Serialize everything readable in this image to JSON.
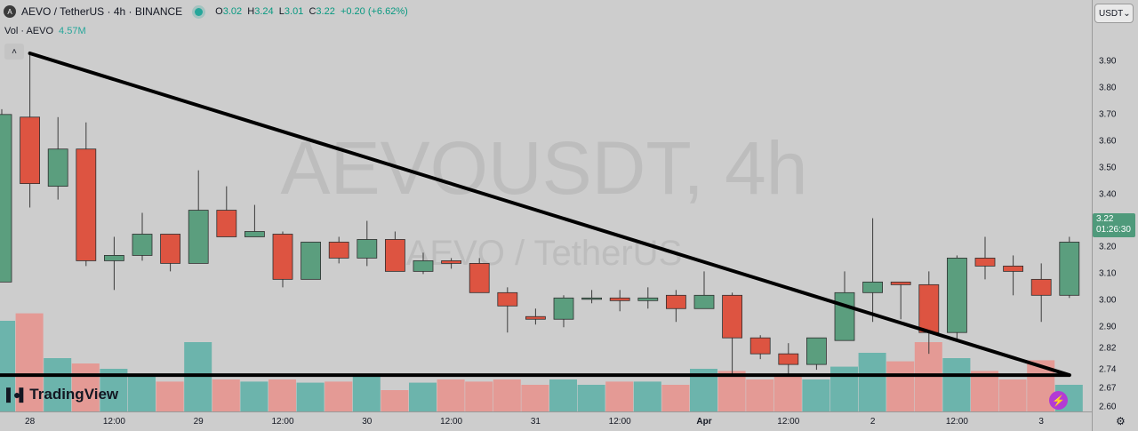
{
  "header": {
    "logo_letter": "A",
    "title": "AEVO / TetherUS · 4h · BINANCE",
    "open_label": "O",
    "open": "3.02",
    "high_label": "H",
    "high": "3.24",
    "low_label": "L",
    "low": "3.01",
    "close_label": "C",
    "close": "3.22",
    "change": "+0.20 (+6.62%)"
  },
  "volume": {
    "label": "Vol · AEVO",
    "value": "4.57M"
  },
  "currency_select": {
    "value": "USDT"
  },
  "current_price": {
    "price": "3.22",
    "countdown": "01:26:30"
  },
  "watermark": {
    "ticker": "AEVOUSDT, 4h",
    "name": "AEVO / TetherUS"
  },
  "branding": {
    "name": "TradingView"
  },
  "price_axis": {
    "labels": [
      "3.90",
      "3.80",
      "3.70",
      "3.60",
      "3.50",
      "3.40",
      "3.30",
      "3.20",
      "3.10",
      "3.00",
      "2.90",
      "2.82",
      "2.74",
      "2.67",
      "2.60"
    ]
  },
  "time_axis": {
    "labels": [
      "28",
      "12:00",
      "29",
      "12:00",
      "30",
      "12:00",
      "31",
      "12:00",
      "Apr",
      "12:00",
      "2",
      "12:00",
      "3"
    ]
  },
  "colors": {
    "up": "#5b9e7e",
    "down": "#dd5441",
    "up_vol": "#6cb4ac",
    "down_vol": "#e49a95",
    "background": "#cdcdcd",
    "trendline": "#000000"
  },
  "chart_data": {
    "type": "candlestick",
    "symbol": "AEVO / TetherUS",
    "interval": "4h",
    "ylim": [
      2.6,
      3.95
    ],
    "candles": [
      {
        "o": 3.07,
        "h": 3.72,
        "l": 3.07,
        "c": 3.7
      },
      {
        "o": 3.69,
        "h": 3.93,
        "l": 3.35,
        "c": 3.44
      },
      {
        "o": 3.43,
        "h": 3.69,
        "l": 3.38,
        "c": 3.57
      },
      {
        "o": 3.57,
        "h": 3.67,
        "l": 3.13,
        "c": 3.15
      },
      {
        "o": 3.15,
        "h": 3.24,
        "l": 3.04,
        "c": 3.17
      },
      {
        "o": 3.17,
        "h": 3.33,
        "l": 3.15,
        "c": 3.25
      },
      {
        "o": 3.25,
        "h": 3.25,
        "l": 3.11,
        "c": 3.14
      },
      {
        "o": 3.14,
        "h": 3.49,
        "l": 3.14,
        "c": 3.34
      },
      {
        "o": 3.34,
        "h": 3.43,
        "l": 3.24,
        "c": 3.24
      },
      {
        "o": 3.24,
        "h": 3.36,
        "l": 3.24,
        "c": 3.26
      },
      {
        "o": 3.25,
        "h": 3.26,
        "l": 3.05,
        "c": 3.08
      },
      {
        "o": 3.08,
        "h": 3.22,
        "l": 3.08,
        "c": 3.22
      },
      {
        "o": 3.22,
        "h": 3.24,
        "l": 3.14,
        "c": 3.16
      },
      {
        "o": 3.16,
        "h": 3.3,
        "l": 3.13,
        "c": 3.23
      },
      {
        "o": 3.23,
        "h": 3.26,
        "l": 3.11,
        "c": 3.11
      },
      {
        "o": 3.11,
        "h": 3.18,
        "l": 3.1,
        "c": 3.15
      },
      {
        "o": 3.15,
        "h": 3.16,
        "l": 3.12,
        "c": 3.14
      },
      {
        "o": 3.14,
        "h": 3.16,
        "l": 3.03,
        "c": 3.03
      },
      {
        "o": 3.03,
        "h": 3.05,
        "l": 2.88,
        "c": 2.98
      },
      {
        "o": 2.94,
        "h": 2.97,
        "l": 2.91,
        "c": 2.93
      },
      {
        "o": 2.93,
        "h": 3.02,
        "l": 2.9,
        "c": 3.01
      },
      {
        "o": 3.01,
        "h": 3.04,
        "l": 2.99,
        "c": 3.01
      },
      {
        "o": 3.01,
        "h": 3.04,
        "l": 2.96,
        "c": 3.0
      },
      {
        "o": 3.0,
        "h": 3.05,
        "l": 2.97,
        "c": 3.01
      },
      {
        "o": 3.02,
        "h": 3.04,
        "l": 2.92,
        "c": 2.97
      },
      {
        "o": 2.97,
        "h": 3.11,
        "l": 2.97,
        "c": 3.02
      },
      {
        "o": 3.02,
        "h": 3.03,
        "l": 2.72,
        "c": 2.86
      },
      {
        "o": 2.86,
        "h": 2.87,
        "l": 2.78,
        "c": 2.8
      },
      {
        "o": 2.8,
        "h": 2.84,
        "l": 2.72,
        "c": 2.76
      },
      {
        "o": 2.76,
        "h": 2.86,
        "l": 2.74,
        "c": 2.86
      },
      {
        "o": 2.85,
        "h": 3.11,
        "l": 2.85,
        "c": 3.03
      },
      {
        "o": 3.03,
        "h": 3.31,
        "l": 2.92,
        "c": 3.07
      },
      {
        "o": 3.07,
        "h": 3.07,
        "l": 2.93,
        "c": 3.06
      },
      {
        "o": 3.06,
        "h": 3.11,
        "l": 2.8,
        "c": 2.88
      },
      {
        "o": 2.88,
        "h": 3.17,
        "l": 2.85,
        "c": 3.16
      },
      {
        "o": 3.16,
        "h": 3.24,
        "l": 3.08,
        "c": 3.13
      },
      {
        "o": 3.13,
        "h": 3.17,
        "l": 3.02,
        "c": 3.11
      },
      {
        "o": 3.08,
        "h": 3.14,
        "l": 2.92,
        "c": 3.02
      },
      {
        "o": 3.02,
        "h": 3.24,
        "l": 3.01,
        "c": 3.22
      }
    ],
    "volumes": [
      0.85,
      0.92,
      0.5,
      0.45,
      0.4,
      0.35,
      0.28,
      0.65,
      0.3,
      0.28,
      0.3,
      0.27,
      0.28,
      0.35,
      0.2,
      0.27,
      0.3,
      0.28,
      0.3,
      0.25,
      0.3,
      0.25,
      0.28,
      0.28,
      0.25,
      0.4,
      0.38,
      0.3,
      0.35,
      0.3,
      0.42,
      0.55,
      0.47,
      0.65,
      0.5,
      0.38,
      0.3,
      0.48,
      0.25
    ],
    "trendlines": [
      {
        "from": [
          1,
          3.93
        ],
        "to": [
          38,
          2.72
        ]
      },
      {
        "from": [
          -1,
          2.72
        ],
        "to": [
          38,
          2.72
        ]
      }
    ]
  }
}
